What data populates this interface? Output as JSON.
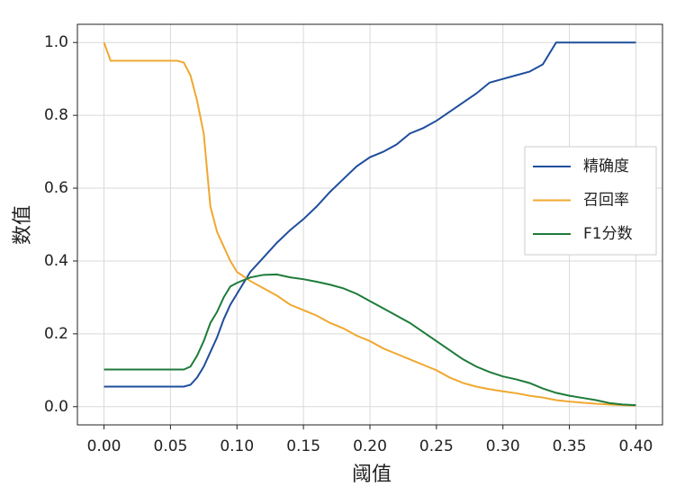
{
  "chart_data": {
    "type": "line",
    "xlabel": "阈值",
    "ylabel": "数值",
    "x": [
      0,
      0.005,
      0.01,
      0.02,
      0.03,
      0.04,
      0.05,
      0.055,
      0.06,
      0.065,
      0.07,
      0.075,
      0.08,
      0.085,
      0.09,
      0.095,
      0.1,
      0.11,
      0.12,
      0.13,
      0.14,
      0.15,
      0.16,
      0.17,
      0.18,
      0.19,
      0.2,
      0.21,
      0.22,
      0.23,
      0.24,
      0.25,
      0.26,
      0.27,
      0.28,
      0.29,
      0.3,
      0.31,
      0.32,
      0.33,
      0.34,
      0.35,
      0.36,
      0.37,
      0.38,
      0.39,
      0.4
    ],
    "series": [
      {
        "name": "精确度",
        "color": "#1f4e9c",
        "values": [
          0.055,
          0.055,
          0.055,
          0.055,
          0.055,
          0.055,
          0.055,
          0.055,
          0.055,
          0.06,
          0.08,
          0.11,
          0.15,
          0.19,
          0.24,
          0.28,
          0.31,
          0.37,
          0.41,
          0.45,
          0.485,
          0.515,
          0.55,
          0.59,
          0.625,
          0.66,
          0.685,
          0.7,
          0.72,
          0.75,
          0.765,
          0.785,
          0.81,
          0.835,
          0.86,
          0.89,
          0.9,
          0.91,
          0.92,
          0.94,
          1.0,
          1.0,
          1.0,
          1.0,
          1.0,
          1.0,
          1.0
        ]
      },
      {
        "name": "召回率",
        "color": "#f0a830",
        "values": [
          1.0,
          0.95,
          0.95,
          0.95,
          0.95,
          0.95,
          0.95,
          0.95,
          0.945,
          0.91,
          0.84,
          0.75,
          0.55,
          0.48,
          0.44,
          0.4,
          0.37,
          0.345,
          0.325,
          0.305,
          0.28,
          0.265,
          0.25,
          0.23,
          0.215,
          0.195,
          0.18,
          0.16,
          0.145,
          0.13,
          0.115,
          0.1,
          0.08,
          0.065,
          0.055,
          0.048,
          0.042,
          0.037,
          0.03,
          0.025,
          0.018,
          0.014,
          0.011,
          0.008,
          0.006,
          0.004,
          0.003
        ]
      },
      {
        "name": "F1分数",
        "color": "#1e7b3a",
        "values": [
          0.102,
          0.102,
          0.102,
          0.102,
          0.102,
          0.102,
          0.102,
          0.102,
          0.102,
          0.11,
          0.14,
          0.18,
          0.23,
          0.26,
          0.3,
          0.33,
          0.34,
          0.355,
          0.362,
          0.363,
          0.355,
          0.35,
          0.343,
          0.335,
          0.325,
          0.31,
          0.29,
          0.27,
          0.25,
          0.23,
          0.205,
          0.18,
          0.155,
          0.13,
          0.11,
          0.095,
          0.083,
          0.075,
          0.065,
          0.05,
          0.038,
          0.03,
          0.024,
          0.018,
          0.01,
          0.006,
          0.004
        ]
      }
    ],
    "xlim": [
      -0.02,
      0.42
    ],
    "ylim": [
      -0.05,
      1.05
    ],
    "xticks": [
      {
        "value": 0,
        "label": "0.00"
      },
      {
        "value": 0.05,
        "label": "0.05"
      },
      {
        "value": 0.1,
        "label": "0.10"
      },
      {
        "value": 0.15,
        "label": "0.15"
      },
      {
        "value": 0.2,
        "label": "0.20"
      },
      {
        "value": 0.25,
        "label": "0.25"
      },
      {
        "value": 0.3,
        "label": "0.30"
      },
      {
        "value": 0.35,
        "label": "0.35"
      },
      {
        "value": 0.4,
        "label": "0.40"
      }
    ],
    "yticks": [
      {
        "value": 0,
        "label": "0.0"
      },
      {
        "value": 0.2,
        "label": "0.2"
      },
      {
        "value": 0.4,
        "label": "0.4"
      },
      {
        "value": 0.6,
        "label": "0.6"
      },
      {
        "value": 0.8,
        "label": "0.8"
      },
      {
        "value": 1.0,
        "label": "1.0"
      }
    ],
    "grid": true,
    "legend": "right"
  }
}
